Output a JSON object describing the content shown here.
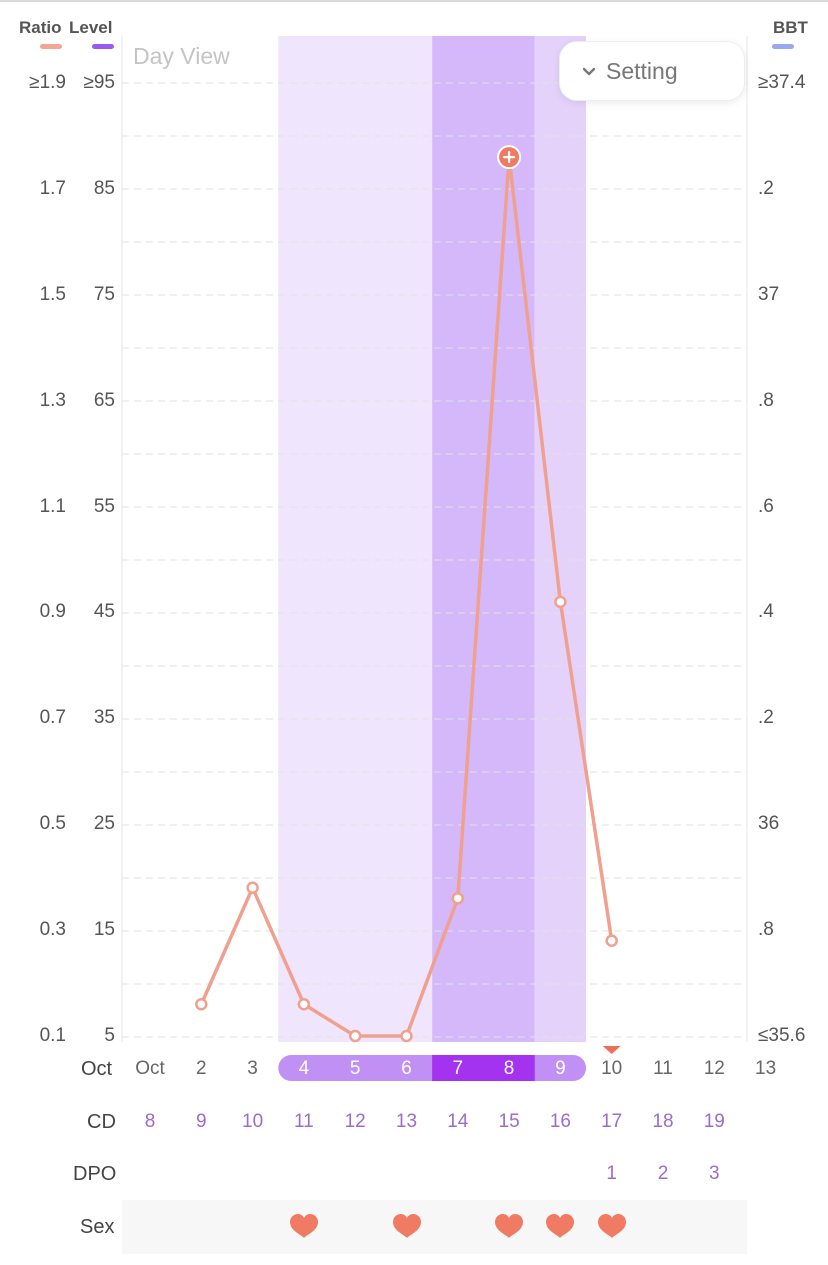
{
  "legend": {
    "ratio_label": "Ratio",
    "level_label": "Level",
    "bbt_label": "BBT",
    "ratio_color": "#f4a593",
    "level_color": "#9b59f2",
    "bbt_color": "#9aa8f0"
  },
  "view_title": "Day View",
  "setting_button": {
    "label": "Setting",
    "icon": "chevron-down-icon"
  },
  "chart_data": {
    "type": "line",
    "x_axis_label": "Oct",
    "x": [
      "Oct",
      "2",
      "3",
      "4",
      "5",
      "6",
      "7",
      "8",
      "9",
      "10",
      "11",
      "12",
      "13"
    ],
    "ratio_axis_ticks": [
      "≥1.9",
      "1.7",
      "1.5",
      "1.3",
      "1.1",
      "0.9",
      "0.7",
      "0.5",
      "0.3",
      "0.1"
    ],
    "level_axis_ticks": [
      "≥95",
      "85",
      "75",
      "65",
      "55",
      "45",
      "35",
      "25",
      "15",
      "5"
    ],
    "bbt_axis_ticks": [
      "≥37.4",
      ".2",
      "37",
      ".8",
      ".6",
      ".4",
      ".2",
      "36",
      ".8",
      "≤35.6"
    ],
    "level_range": [
      5,
      95
    ],
    "series": [
      {
        "name": "Level",
        "x": [
          "2",
          "3",
          "4",
          "5",
          "6",
          "7",
          "8",
          "9",
          "10"
        ],
        "values": [
          8,
          19,
          8,
          5,
          5,
          18,
          88,
          46,
          14
        ],
        "peak_index": 6
      }
    ],
    "fertile_window": [
      "4",
      "9"
    ],
    "peak_days": [
      "7",
      "8"
    ],
    "grid": true
  },
  "date_colors": {
    "fertile": "#c090f5",
    "peak": "#a433f0",
    "window_light": "#efe6fe",
    "window_mid": "#e4d2fb",
    "window_dark": "#d4b8fa"
  },
  "rows": {
    "cd": {
      "label": "CD",
      "values": [
        "8",
        "9",
        "10",
        "11",
        "12",
        "13",
        "14",
        "15",
        "16",
        "17",
        "18",
        "19"
      ]
    },
    "dpo": {
      "label": "DPO",
      "values": [
        "",
        "",
        "",
        "",
        "",
        "",
        "",
        "",
        "",
        "1",
        "2",
        "3"
      ]
    },
    "sex": {
      "label": "Sex",
      "days": [
        false,
        false,
        false,
        true,
        false,
        true,
        false,
        true,
        true,
        true,
        false,
        false
      ],
      "icon": "heart-icon"
    }
  }
}
